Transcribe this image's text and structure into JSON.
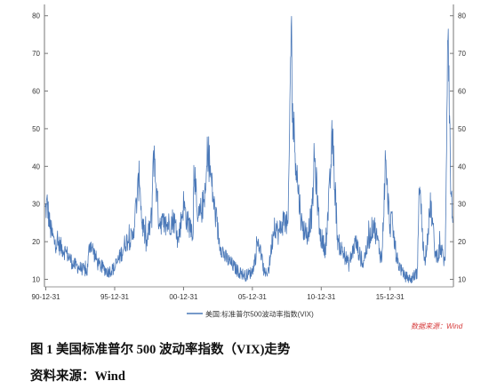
{
  "chart_data": {
    "type": "line",
    "y_ticks": [
      "10",
      "20",
      "30",
      "40",
      "50",
      "60",
      "70",
      "80"
    ],
    "ylim": [
      8,
      83
    ],
    "x_ticks": [
      "90-12-31",
      "95-12-31",
      "00-12-31",
      "05-12-31",
      "10-12-31",
      "15-12-31"
    ],
    "xlim": [
      1990.9,
      2020.6
    ],
    "series": [
      {
        "name": "美国:标准普尔500波动率指数(VIX)",
        "color": "#4a78b8",
        "x": [
          1990.95,
          1991.1,
          1991.3,
          1991.6,
          1992.0,
          1992.5,
          1993.0,
          1993.5,
          1994.0,
          1994.2,
          1994.8,
          1995.5,
          1996.0,
          1996.5,
          1996.8,
          1997.3,
          1997.82,
          1997.95,
          1998.3,
          1998.7,
          1998.8,
          1999.2,
          1999.7,
          2000.3,
          2000.6,
          2001.0,
          2001.3,
          2001.7,
          2001.75,
          2002.0,
          2002.6,
          2002.75,
          2003.2,
          2003.6,
          2004.0,
          2004.5,
          2005.0,
          2005.5,
          2006.0,
          2006.45,
          2006.9,
          2007.2,
          2007.6,
          2007.9,
          2008.3,
          2008.6,
          2008.82,
          2008.9,
          2009.1,
          2009.3,
          2009.6,
          2010.0,
          2010.35,
          2010.5,
          2010.9,
          2011.3,
          2011.6,
          2011.8,
          2012.2,
          2012.6,
          2013.0,
          2013.5,
          2014.0,
          2014.8,
          2015.4,
          2015.65,
          2016.0,
          2016.1,
          2016.5,
          2017.0,
          2017.5,
          2018.0,
          2018.1,
          2018.5,
          2018.95,
          2019.3,
          2019.7,
          2020.0,
          2020.2,
          2020.4,
          2020.55
        ],
        "y": [
          28,
          30,
          24,
          20,
          19,
          17,
          14,
          13,
          12,
          20,
          14,
          12,
          13,
          17,
          20,
          21,
          38,
          26,
          19,
          27,
          45,
          26,
          24,
          26,
          20,
          30,
          25,
          23,
          43,
          25,
          32,
          45,
          30,
          20,
          16,
          14,
          12,
          11,
          12,
          20,
          11,
          13,
          25,
          22,
          26,
          24,
          80,
          55,
          45,
          35,
          24,
          22,
          28,
          43,
          22,
          18,
          33,
          48,
          20,
          17,
          14,
          20,
          14,
          25,
          15,
          40,
          24,
          26,
          15,
          11,
          10,
          12,
          37,
          14,
          30,
          16,
          18,
          14,
          82,
          35,
          25
        ]
      }
    ],
    "legend_label": "美国:标准普尔500波动率指数(VIX)",
    "legend_position": "bottom",
    "watermark": "数据来源：Wind"
  },
  "caption": {
    "figure": "图 1 美国标准普尔 500 波动率指数（VIX)走势",
    "source": "资料来源：Wind"
  }
}
